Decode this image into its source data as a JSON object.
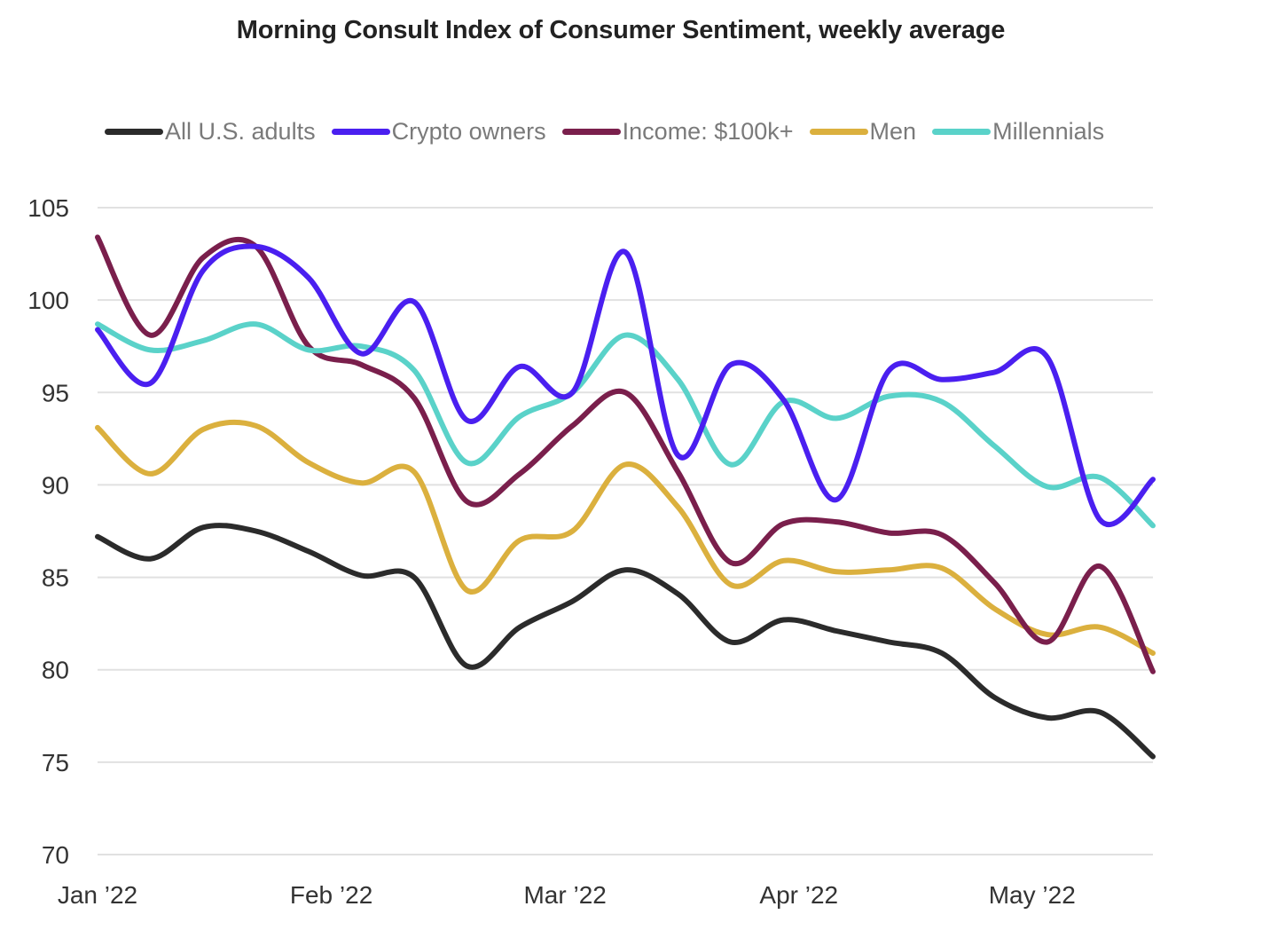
{
  "chart_data": {
    "type": "line",
    "title": "Morning Consult Index of Consumer Sentiment, weekly average",
    "xlabel": "",
    "ylabel": "",
    "ylim": [
      70,
      105
    ],
    "yticks": [
      70,
      75,
      80,
      85,
      90,
      95,
      100,
      105
    ],
    "grid": true,
    "legend_position": "top",
    "x": [
      0,
      1,
      2,
      3,
      4,
      5,
      6,
      7,
      8,
      9,
      10,
      11,
      12,
      13,
      14,
      15,
      16,
      17,
      18,
      19,
      20
    ],
    "x_unit": "week index (weekly averages, Jan 2022 – May 2022)",
    "xticks": [
      {
        "label": "Jan ’22",
        "at": 0
      },
      {
        "label": "Feb ’22",
        "at": 4.43
      },
      {
        "label": "Mar ’22",
        "at": 8.86
      },
      {
        "label": "Apr ’22",
        "at": 13.29
      },
      {
        "label": "May ’22",
        "at": 17.71
      }
    ],
    "series": [
      {
        "name": "All U.S. adults",
        "color": "#2b2b2b",
        "values": [
          87.2,
          86.0,
          87.7,
          87.5,
          86.4,
          85.1,
          85.0,
          80.2,
          82.3,
          83.7,
          85.4,
          84.1,
          81.5,
          82.7,
          82.1,
          81.5,
          80.9,
          78.5,
          77.4,
          77.7,
          75.3
        ]
      },
      {
        "name": "Crypto owners",
        "color": "#4a1ff0",
        "values": [
          98.4,
          95.5,
          101.6,
          102.9,
          101.2,
          97.1,
          99.9,
          93.5,
          96.4,
          95.0,
          102.6,
          91.6,
          96.5,
          94.6,
          89.2,
          96.2,
          95.7,
          96.1,
          96.9,
          88.1,
          90.3
        ]
      },
      {
        "name": "Income: $100k+",
        "color": "#7a1f4c",
        "values": [
          103.4,
          98.1,
          102.3,
          102.9,
          97.5,
          96.5,
          94.7,
          89.1,
          90.6,
          93.2,
          95.0,
          90.7,
          85.8,
          87.9,
          88.0,
          87.4,
          87.3,
          84.7,
          81.5,
          85.6,
          79.9
        ]
      },
      {
        "name": "Men",
        "color": "#dbb03e",
        "values": [
          93.1,
          90.6,
          93.0,
          93.2,
          91.2,
          90.1,
          90.7,
          84.3,
          87.0,
          87.5,
          91.1,
          88.8,
          84.6,
          85.9,
          85.3,
          85.4,
          85.5,
          83.3,
          81.9,
          82.3,
          80.9
        ]
      },
      {
        "name": "Millennials",
        "color": "#5ad2c9",
        "values": [
          98.7,
          97.3,
          97.8,
          98.7,
          97.3,
          97.5,
          96.2,
          91.2,
          93.7,
          95.0,
          98.1,
          95.7,
          91.1,
          94.5,
          93.6,
          94.8,
          94.5,
          92.1,
          89.9,
          90.4,
          87.8
        ]
      }
    ]
  }
}
